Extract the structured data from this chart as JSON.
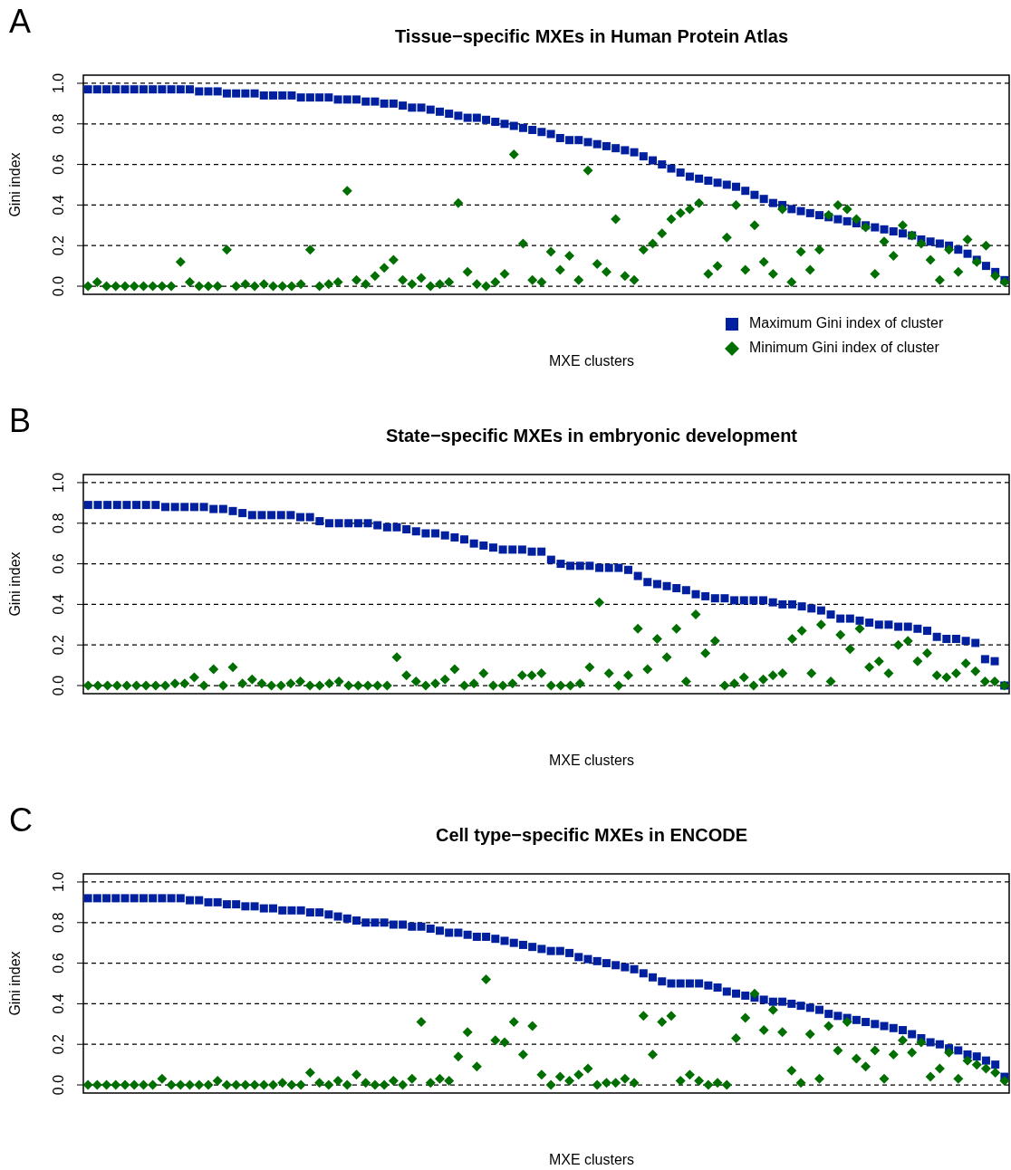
{
  "chart_data": [
    {
      "type": "scatter",
      "title": "Tissue−specific MXEs in Human Protein Atlas",
      "xlabel": "MXE clusters",
      "ylabel": "Gini index",
      "annotations": [
        "A"
      ],
      "ylim": [
        -0.04,
        1.04
      ],
      "yticks": [
        {
          "value": 0,
          "label": "0.0"
        },
        {
          "value": 0.2,
          "label": "0.2"
        },
        {
          "value": 0.4,
          "label": "0.4"
        },
        {
          "value": 0.6,
          "label": "0.6"
        },
        {
          "value": 0.8,
          "label": "0.8"
        },
        {
          "value": 1,
          "label": "1.0"
        }
      ],
      "grid": "y",
      "line_style": "dashed",
      "legend": "bottom right",
      "categories": [
        null,
        null,
        null,
        null,
        null,
        null,
        null,
        null,
        null,
        null,
        null,
        null,
        null,
        null,
        null,
        null,
        null,
        null,
        null,
        null,
        null,
        null,
        null,
        null,
        null,
        null,
        null,
        null,
        null,
        null,
        null,
        null,
        null,
        null,
        null,
        null,
        null,
        null,
        null,
        null,
        null,
        null,
        null,
        null,
        null,
        null,
        null,
        null,
        null,
        null,
        null,
        null,
        null,
        null,
        null,
        null,
        null,
        null,
        null,
        null,
        null,
        null,
        null,
        null,
        null,
        null,
        null,
        null,
        null,
        null,
        null,
        null,
        null,
        null,
        null,
        null,
        null,
        null,
        null,
        null,
        null,
        null,
        null,
        null,
        null,
        null,
        null,
        null,
        null,
        null,
        null,
        null,
        null,
        null,
        null,
        null,
        null,
        null,
        null,
        null
      ],
      "series": [
        {
          "name": "Maximum Gini index of cluster",
          "color": "#00209f",
          "marker": "square",
          "values": [
            0.97,
            0.97,
            0.97,
            0.97,
            0.97,
            0.97,
            0.97,
            0.97,
            0.97,
            0.97,
            0.97,
            0.97,
            0.96,
            0.96,
            0.96,
            0.95,
            0.95,
            0.95,
            0.95,
            0.94,
            0.94,
            0.94,
            0.94,
            0.93,
            0.93,
            0.93,
            0.93,
            0.92,
            0.92,
            0.92,
            0.91,
            0.91,
            0.9,
            0.9,
            0.89,
            0.88,
            0.88,
            0.87,
            0.86,
            0.85,
            0.84,
            0.83,
            0.83,
            0.82,
            0.81,
            0.8,
            0.79,
            0.78,
            0.77,
            0.76,
            0.75,
            0.73,
            0.72,
            0.72,
            0.71,
            0.7,
            0.69,
            0.68,
            0.67,
            0.66,
            0.64,
            0.62,
            0.6,
            0.58,
            0.56,
            0.54,
            0.53,
            0.52,
            0.51,
            0.5,
            0.49,
            0.47,
            0.45,
            0.43,
            0.41,
            0.4,
            0.38,
            0.37,
            0.36,
            0.35,
            0.34,
            0.33,
            0.32,
            0.31,
            0.3,
            0.29,
            0.28,
            0.27,
            0.26,
            0.25,
            0.23,
            0.22,
            0.21,
            0.2,
            0.18,
            0.16,
            0.13,
            0.1,
            0.07,
            0.03
          ]
        },
        {
          "name": "Minimum Gini index of cluster",
          "color": "#006e00",
          "marker": "diamond",
          "values": [
            0,
            0.02,
            0,
            0,
            0,
            0,
            0,
            0,
            0,
            0,
            0.12,
            0.02,
            0,
            0,
            0,
            0.18,
            0,
            0.01,
            0,
            0.01,
            0,
            0,
            0,
            0.01,
            0.18,
            0,
            0.01,
            0.02,
            0.47,
            0.03,
            0.01,
            0.05,
            0.09,
            0.13,
            0.03,
            0.01,
            0.04,
            0,
            0.01,
            0.02,
            0.41,
            0.07,
            0.01,
            0,
            0.02,
            0.06,
            0.65,
            0.21,
            0.03,
            0.02,
            0.17,
            0.08,
            0.15,
            0.03,
            0.57,
            0.11,
            0.07,
            0.33,
            0.05,
            0.03,
            0.18,
            0.21,
            0.26,
            0.33,
            0.36,
            0.38,
            0.41,
            0.06,
            0.1,
            0.24,
            0.4,
            0.08,
            0.3,
            0.12,
            0.06,
            0.38,
            0.02,
            0.17,
            0.08,
            0.18,
            0.35,
            0.4,
            0.38,
            0.33,
            0.29,
            0.06,
            0.22,
            0.15,
            0.3,
            0.25,
            0.21,
            0.13,
            0.03,
            0.18,
            0.07,
            0.23,
            0.12,
            0.2,
            0.05,
            0.02
          ]
        }
      ]
    },
    {
      "type": "scatter",
      "title": "State−specific MXEs in embryonic development",
      "xlabel": "MXE clusters",
      "ylabel": "Gini index",
      "annotations": [
        "B"
      ],
      "ylim": [
        -0.04,
        1.04
      ],
      "yticks": [
        {
          "value": 0,
          "label": "0.0"
        },
        {
          "value": 0.2,
          "label": "0.2"
        },
        {
          "value": 0.4,
          "label": "0.4"
        },
        {
          "value": 0.6,
          "label": "0.6"
        },
        {
          "value": 0.8,
          "label": "0.8"
        },
        {
          "value": 1,
          "label": "1.0"
        }
      ],
      "grid": "y",
      "line_style": "dashed",
      "categories": [
        null,
        null,
        null,
        null,
        null,
        null,
        null,
        null,
        null,
        null,
        null,
        null,
        null,
        null,
        null,
        null,
        null,
        null,
        null,
        null,
        null,
        null,
        null,
        null,
        null,
        null,
        null,
        null,
        null,
        null,
        null,
        null,
        null,
        null,
        null,
        null,
        null,
        null,
        null,
        null,
        null,
        null,
        null,
        null,
        null,
        null,
        null,
        null,
        null,
        null,
        null,
        null,
        null,
        null,
        null,
        null,
        null,
        null,
        null,
        null,
        null,
        null,
        null,
        null,
        null,
        null,
        null,
        null,
        null,
        null,
        null,
        null,
        null,
        null,
        null,
        null,
        null,
        null,
        null,
        null,
        null,
        null,
        null,
        null,
        null,
        null,
        null,
        null,
        null,
        null,
        null,
        null,
        null,
        null,
        null,
        null
      ],
      "series": [
        {
          "color": "#00209f",
          "marker": "square",
          "values": [
            0.89,
            0.89,
            0.89,
            0.89,
            0.89,
            0.89,
            0.89,
            0.89,
            0.88,
            0.88,
            0.88,
            0.88,
            0.88,
            0.87,
            0.87,
            0.86,
            0.85,
            0.84,
            0.84,
            0.84,
            0.84,
            0.84,
            0.83,
            0.83,
            0.81,
            0.8,
            0.8,
            0.8,
            0.8,
            0.8,
            0.79,
            0.78,
            0.78,
            0.77,
            0.76,
            0.75,
            0.75,
            0.74,
            0.73,
            0.72,
            0.7,
            0.69,
            0.68,
            0.67,
            0.67,
            0.67,
            0.66,
            0.66,
            0.62,
            0.6,
            0.59,
            0.59,
            0.59,
            0.58,
            0.58,
            0.58,
            0.57,
            0.54,
            0.51,
            0.5,
            0.49,
            0.48,
            0.47,
            0.45,
            0.44,
            0.43,
            0.43,
            0.42,
            0.42,
            0.42,
            0.42,
            0.41,
            0.4,
            0.4,
            0.39,
            0.38,
            0.37,
            0.35,
            0.33,
            0.33,
            0.32,
            0.31,
            0.3,
            0.3,
            0.29,
            0.29,
            0.28,
            0.27,
            0.24,
            0.23,
            0.23,
            0.22,
            0.21,
            0.13,
            0.12,
            0
          ]
        },
        {
          "color": "#006e00",
          "marker": "diamond",
          "values": [
            0,
            0,
            0,
            0,
            0,
            0,
            0,
            0,
            0,
            0.01,
            0.01,
            0.04,
            0,
            0.08,
            0,
            0.09,
            0.01,
            0.03,
            0.01,
            0,
            0,
            0.01,
            0.02,
            0,
            0,
            0.01,
            0.02,
            0,
            0,
            0,
            0,
            0,
            0.14,
            0.05,
            0.02,
            0,
            0.01,
            0.03,
            0.08,
            0,
            0.01,
            0.06,
            0,
            0,
            0.01,
            0.05,
            0.05,
            0.06,
            0,
            0,
            0,
            0.01,
            0.09,
            0.41,
            0.06,
            0,
            0.05,
            0.28,
            0.08,
            0.23,
            0.14,
            0.28,
            0.02,
            0.35,
            0.16,
            0.22,
            0,
            0.01,
            0.04,
            0,
            0.03,
            0.05,
            0.06,
            0.23,
            0.27,
            0.06,
            0.3,
            0.02,
            0.25,
            0.18,
            0.28,
            0.09,
            0.12,
            0.06,
            0.2,
            0.22,
            0.12,
            0.16,
            0.05,
            0.04,
            0.06,
            0.11,
            0.07,
            0.02,
            0.02,
            0
          ]
        }
      ]
    },
    {
      "type": "scatter",
      "title": "Cell type−specific MXEs in ENCODE",
      "xlabel": "MXE clusters",
      "ylabel": "Gini index",
      "annotations": [
        "C"
      ],
      "ylim": [
        -0.04,
        1.04
      ],
      "yticks": [
        {
          "value": 0,
          "label": "0.0"
        },
        {
          "value": 0.2,
          "label": "0.2"
        },
        {
          "value": 0.4,
          "label": "0.4"
        },
        {
          "value": 0.6,
          "label": "0.6"
        },
        {
          "value": 0.8,
          "label": "0.8"
        },
        {
          "value": 1,
          "label": "1.0"
        }
      ],
      "grid": "y",
      "line_style": "dashed",
      "categories": [
        null,
        null,
        null,
        null,
        null,
        null,
        null,
        null,
        null,
        null,
        null,
        null,
        null,
        null,
        null,
        null,
        null,
        null,
        null,
        null,
        null,
        null,
        null,
        null,
        null,
        null,
        null,
        null,
        null,
        null,
        null,
        null,
        null,
        null,
        null,
        null,
        null,
        null,
        null,
        null,
        null,
        null,
        null,
        null,
        null,
        null,
        null,
        null,
        null,
        null,
        null,
        null,
        null,
        null,
        null,
        null,
        null,
        null,
        null,
        null,
        null,
        null,
        null,
        null,
        null,
        null,
        null,
        null,
        null,
        null,
        null,
        null,
        null,
        null,
        null,
        null,
        null,
        null,
        null,
        null,
        null,
        null,
        null,
        null,
        null,
        null,
        null,
        null,
        null,
        null,
        null,
        null,
        null,
        null,
        null,
        null,
        null,
        null,
        null,
        null
      ],
      "series": [
        {
          "color": "#00209f",
          "marker": "square",
          "values": [
            0.92,
            0.92,
            0.92,
            0.92,
            0.92,
            0.92,
            0.92,
            0.92,
            0.92,
            0.92,
            0.92,
            0.91,
            0.91,
            0.9,
            0.9,
            0.89,
            0.89,
            0.88,
            0.88,
            0.87,
            0.87,
            0.86,
            0.86,
            0.86,
            0.85,
            0.85,
            0.84,
            0.83,
            0.82,
            0.81,
            0.8,
            0.8,
            0.8,
            0.79,
            0.79,
            0.78,
            0.78,
            0.77,
            0.76,
            0.75,
            0.75,
            0.74,
            0.73,
            0.73,
            0.72,
            0.71,
            0.7,
            0.69,
            0.68,
            0.67,
            0.66,
            0.66,
            0.65,
            0.63,
            0.62,
            0.61,
            0.6,
            0.59,
            0.58,
            0.57,
            0.55,
            0.53,
            0.51,
            0.5,
            0.5,
            0.5,
            0.5,
            0.49,
            0.48,
            0.46,
            0.45,
            0.44,
            0.43,
            0.42,
            0.41,
            0.41,
            0.4,
            0.39,
            0.38,
            0.37,
            0.35,
            0.34,
            0.33,
            0.32,
            0.31,
            0.3,
            0.29,
            0.28,
            0.27,
            0.25,
            0.23,
            0.21,
            0.2,
            0.18,
            0.17,
            0.15,
            0.14,
            0.12,
            0.1,
            0.04
          ]
        },
        {
          "color": "#006e00",
          "marker": "diamond",
          "values": [
            0,
            0,
            0,
            0,
            0,
            0,
            0,
            0,
            0.03,
            0,
            0,
            0,
            0,
            0,
            0.02,
            0,
            0,
            0,
            0,
            0,
            0,
            0.01,
            0,
            0,
            0.06,
            0.01,
            0,
            0.02,
            0,
            0.05,
            0.01,
            0,
            0,
            0.02,
            0,
            0.03,
            0.31,
            0.01,
            0.03,
            0.02,
            0.14,
            0.26,
            0.09,
            0.52,
            0.22,
            0.21,
            0.31,
            0.15,
            0.29,
            0.05,
            0,
            0.04,
            0.02,
            0.05,
            0.08,
            0,
            0.01,
            0.01,
            0.03,
            0.01,
            0.34,
            0.15,
            0.31,
            0.34,
            0.02,
            0.05,
            0.02,
            0,
            0.01,
            0,
            0.23,
            0.33,
            0.45,
            0.27,
            0.37,
            0.26,
            0.07,
            0.01,
            0.25,
            0.03,
            0.29,
            0.17,
            0.31,
            0.13,
            0.09,
            0.17,
            0.03,
            0.15,
            0.22,
            0.16,
            0.21,
            0.04,
            0.08,
            0.16,
            0.03,
            0.12,
            0.1,
            0.08,
            0.06,
            0.02
          ]
        }
      ]
    }
  ]
}
